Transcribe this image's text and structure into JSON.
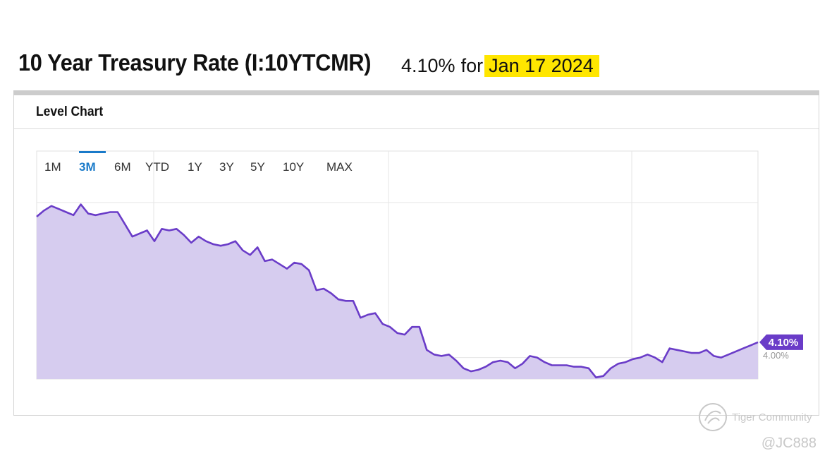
{
  "header": {
    "title": "10 Year Treasury Rate (I:10YTCMR)",
    "value_text": "4.10%",
    "for_text": "for",
    "date_text": "Jan 17 2024",
    "highlight_color": "#ffe600"
  },
  "panel": {
    "title": "Level Chart"
  },
  "tabs": [
    {
      "label": "1M",
      "active": false
    },
    {
      "label": "3M",
      "active": true
    },
    {
      "label": "6M",
      "active": false
    },
    {
      "label": "YTD",
      "active": false
    },
    {
      "label": "1Y",
      "active": false
    },
    {
      "label": "3Y",
      "active": false
    },
    {
      "label": "5Y",
      "active": false
    },
    {
      "label": "10Y",
      "active": false
    },
    {
      "label": "MAX",
      "active": false
    }
  ],
  "chart_data": {
    "type": "area",
    "series_color": "#6a3cc8",
    "fill_color": "#d6ccef",
    "grid": true,
    "y_tick_labels": [
      "4.00%"
    ],
    "ylim": [
      3.86,
      5.012
    ],
    "last_value_label": "4.10%",
    "values": [
      4.92,
      4.96,
      4.99,
      4.97,
      4.95,
      4.93,
      5.0,
      4.94,
      4.93,
      4.94,
      4.95,
      4.95,
      4.87,
      4.79,
      4.81,
      4.83,
      4.76,
      4.84,
      4.83,
      4.84,
      4.8,
      4.75,
      4.79,
      4.76,
      4.74,
      4.73,
      4.74,
      4.76,
      4.7,
      4.67,
      4.72,
      4.63,
      4.64,
      4.61,
      4.58,
      4.62,
      4.61,
      4.57,
      4.44,
      4.45,
      4.42,
      4.38,
      4.37,
      4.37,
      4.26,
      4.28,
      4.29,
      4.22,
      4.2,
      4.16,
      4.15,
      4.2,
      4.2,
      4.05,
      4.02,
      4.01,
      4.02,
      3.98,
      3.93,
      3.91,
      3.92,
      3.94,
      3.97,
      3.98,
      3.97,
      3.93,
      3.96,
      4.01,
      4.0,
      3.97,
      3.95,
      3.95,
      3.95,
      3.94,
      3.94,
      3.93,
      3.87,
      3.88,
      3.93,
      3.96,
      3.97,
      3.99,
      4.0,
      4.02,
      4.0,
      3.97,
      4.06,
      4.05,
      4.04,
      4.03,
      4.03,
      4.05,
      4.01,
      4.0,
      4.02,
      4.04,
      4.06,
      4.08,
      4.1
    ]
  },
  "watermark": {
    "brand": "Tiger Community",
    "handle": "@JC888"
  }
}
